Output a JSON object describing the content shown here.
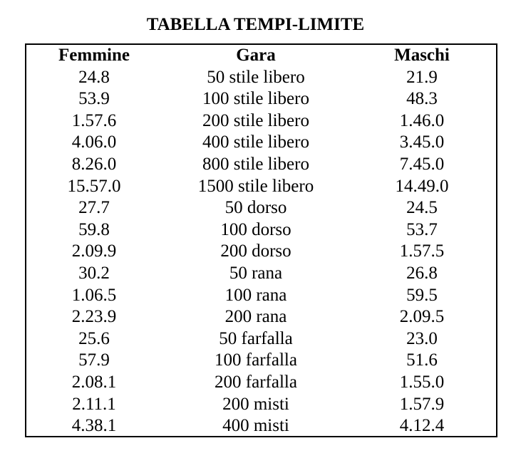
{
  "title": "TABELLA TEMPI-LIMITE",
  "headers": {
    "female": "Femmine",
    "event": "Gara",
    "male": "Maschi"
  },
  "rows": [
    {
      "female": "24.8",
      "event": "50 stile libero",
      "male": "21.9"
    },
    {
      "female": "53.9",
      "event": "100 stile libero",
      "male": "48.3"
    },
    {
      "female": "1.57.6",
      "event": "200 stile libero",
      "male": "1.46.0"
    },
    {
      "female": "4.06.0",
      "event": "400 stile libero",
      "male": "3.45.0"
    },
    {
      "female": "8.26.0",
      "event": "800 stile libero",
      "male": "7.45.0"
    },
    {
      "female": "15.57.0",
      "event": "1500 stile libero",
      "male": "14.49.0"
    },
    {
      "female": "27.7",
      "event": "50 dorso",
      "male": "24.5"
    },
    {
      "female": "59.8",
      "event": "100 dorso",
      "male": "53.7"
    },
    {
      "female": "2.09.9",
      "event": "200 dorso",
      "male": "1.57.5"
    },
    {
      "female": "30.2",
      "event": "50 rana",
      "male": "26.8"
    },
    {
      "female": "1.06.5",
      "event": "100 rana",
      "male": "59.5"
    },
    {
      "female": "2.23.9",
      "event": "200 rana",
      "male": "2.09.5"
    },
    {
      "female": "25.6",
      "event": "50 farfalla",
      "male": "23.0"
    },
    {
      "female": "57.9",
      "event": "100 farfalla",
      "male": "51.6"
    },
    {
      "female": "2.08.1",
      "event": "200 farfalla",
      "male": "1.55.0"
    },
    {
      "female": "2.11.1",
      "event": "200 misti",
      "male": "1.57.9"
    },
    {
      "female": "4.38.1",
      "event": "400 misti",
      "male": "4.12.4"
    }
  ]
}
